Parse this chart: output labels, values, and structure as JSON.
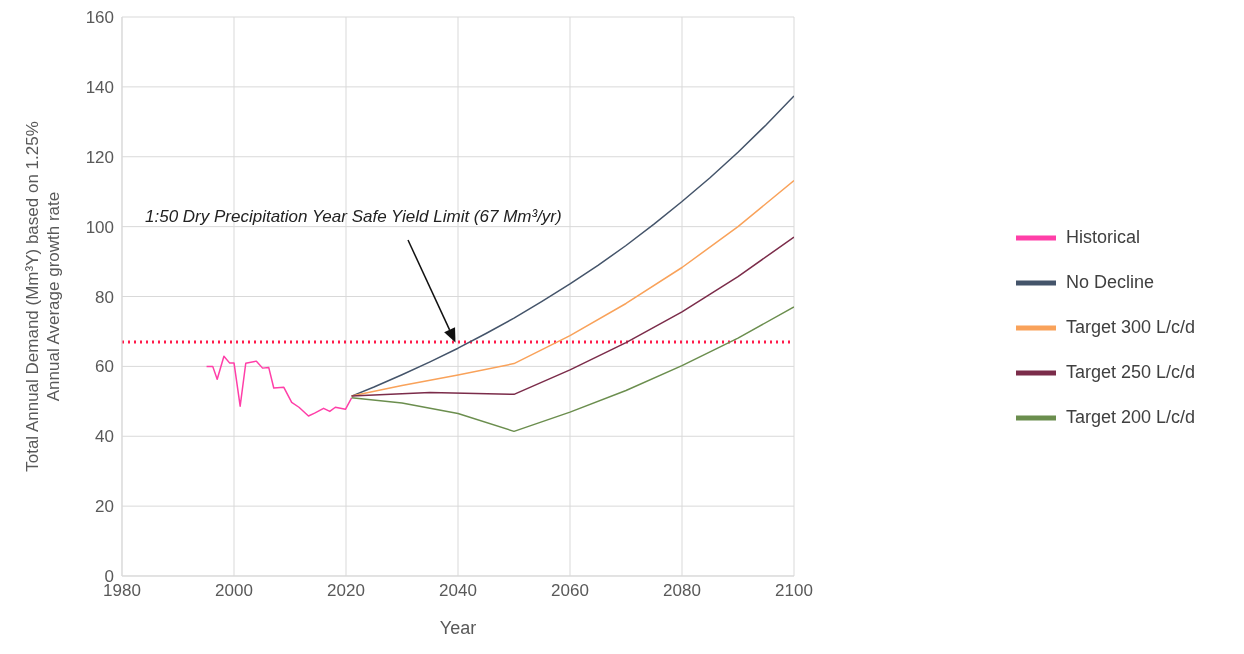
{
  "chart_data": {
    "type": "line",
    "xlabel": "Year",
    "ylabel": "Total Annual Demand (Mm³Y) based on 1.25% Annual Average growth rate",
    "xlim": [
      1980,
      2100
    ],
    "xticks": [
      1980,
      2000,
      2020,
      2040,
      2060,
      2080,
      2100
    ],
    "ylim": [
      0,
      160
    ],
    "yticks": [
      0,
      20,
      40,
      60,
      80,
      100,
      120,
      140,
      160
    ],
    "grid": true,
    "legend": "right",
    "line_style": "solid",
    "marker": "none",
    "series": [
      {
        "name": "Historical",
        "color": "#ff3fa8",
        "x": [
          1995.1,
          1996.2,
          1997,
          1998.2,
          1999.2,
          2000,
          2001.1,
          2002.1,
          2004,
          2005.1,
          2006.2,
          2007.1,
          2008.9,
          2010.3,
          2011.6,
          2013.3,
          2014.4,
          2016,
          2017.1,
          2018.1,
          2019.9,
          2021
        ],
        "values": [
          60,
          60,
          56.3,
          62.9,
          61,
          61,
          48.6,
          60.9,
          61.5,
          59.5,
          59.7,
          53.8,
          54,
          49.7,
          48.3,
          45.8,
          46.6,
          48,
          47.1,
          48.3,
          47.7,
          51
        ]
      },
      {
        "name": "No Decline",
        "color": "#44546a",
        "x": [
          2021,
          2025,
          2030,
          2035,
          2040,
          2045,
          2050,
          2055,
          2060,
          2065,
          2070,
          2075,
          2080,
          2085,
          2090,
          2095,
          2100
        ],
        "values": [
          51.5,
          54.1,
          57.6,
          61.3,
          65.2,
          69.4,
          73.8,
          78.6,
          83.6,
          88.9,
          94.6,
          100.7,
          107.2,
          114,
          121.3,
          129.1,
          137.4
        ]
      },
      {
        "name": "Target 300 L/c/d",
        "color": "#f9a25a",
        "x": [
          2021,
          2030,
          2040,
          2050,
          2060,
          2070,
          2080,
          2090,
          2100
        ],
        "values": [
          51.5,
          54.5,
          57.5,
          60.8,
          68.8,
          78,
          88.3,
          100,
          113.2
        ]
      },
      {
        "name": "Target 250 L/c/d",
        "color": "#7b2c4a",
        "x": [
          2021,
          2035,
          2050,
          2060,
          2070,
          2080,
          2090,
          2100
        ],
        "values": [
          51.5,
          52.5,
          52,
          59,
          66.8,
          75.6,
          85.7,
          97
        ]
      },
      {
        "name": "Target 200 L/c/d",
        "color": "#6b8e4e",
        "x": [
          2021,
          2030,
          2040,
          2050,
          2060,
          2070,
          2080,
          2090,
          2100
        ],
        "values": [
          51,
          49.5,
          46.5,
          41.4,
          46.9,
          53.1,
          60.2,
          68.1,
          77
        ]
      }
    ],
    "ref_lines": [
      {
        "axis": "y",
        "value": 67,
        "color": "#ff1a4a",
        "line_style": "dotted"
      }
    ],
    "annotations": [
      "1:50 Dry Precipitation Year Safe Yield Limit (67 Mm³/yr)"
    ]
  }
}
